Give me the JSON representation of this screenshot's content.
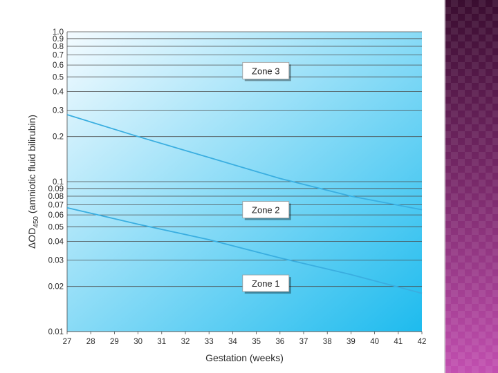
{
  "chart_data": {
    "type": "line",
    "xlabel": "Gestation (weeks)",
    "ylabel_prefix": "Δ",
    "ylabel_main": "OD",
    "ylabel_sub": "450",
    "ylabel_suffix": " (amniotic fluid bilirubin)",
    "x_scale": "linear",
    "y_scale": "log",
    "xlim": [
      27,
      42
    ],
    "ylim": [
      0.01,
      1.0
    ],
    "x_ticks": [
      27,
      28,
      29,
      30,
      31,
      32,
      33,
      34,
      35,
      36,
      37,
      38,
      39,
      40,
      41,
      42
    ],
    "y_ticks": [
      {
        "value": 1.0,
        "label": "1.0"
      },
      {
        "value": 0.9,
        "label": "0.9"
      },
      {
        "value": 0.8,
        "label": "0.8"
      },
      {
        "value": 0.7,
        "label": "0.7"
      },
      {
        "value": 0.6,
        "label": "0.6"
      },
      {
        "value": 0.5,
        "label": "0.5"
      },
      {
        "value": 0.4,
        "label": "0.4"
      },
      {
        "value": 0.3,
        "label": "0.3"
      },
      {
        "value": 0.2,
        "label": "0.2"
      },
      {
        "value": 0.1,
        "label": "0.1"
      },
      {
        "value": 0.09,
        "label": "0.09"
      },
      {
        "value": 0.08,
        "label": "0.08"
      },
      {
        "value": 0.07,
        "label": "0.07"
      },
      {
        "value": 0.06,
        "label": "0.06"
      },
      {
        "value": 0.05,
        "label": "0.05"
      },
      {
        "value": 0.04,
        "label": "0.04"
      },
      {
        "value": 0.03,
        "label": "0.03"
      },
      {
        "value": 0.02,
        "label": "0.02"
      },
      {
        "value": 0.01,
        "label": "0.01"
      }
    ],
    "grid": true,
    "series": [
      {
        "x": [
          27,
          30,
          33,
          36,
          39,
          42
        ],
        "y": [
          0.28,
          0.2,
          0.145,
          0.105,
          0.08,
          0.065
        ]
      },
      {
        "x": [
          27,
          30,
          33,
          36,
          39,
          42
        ],
        "y": [
          0.067,
          0.052,
          0.041,
          0.031,
          0.024,
          0.018
        ]
      }
    ],
    "annotations": [
      {
        "text": "Zone 3",
        "x": 35.4,
        "y": 0.55
      },
      {
        "text": "Zone 2",
        "x": 35.4,
        "y": 0.065
      },
      {
        "text": "Zone 1",
        "x": 35.4,
        "y": 0.021
      }
    ]
  },
  "colors": {
    "plot_bg_start": "#f4fbff",
    "plot_bg_end": "#1ebbee",
    "grid": "#4a4a4a",
    "curve": "#3aaee0",
    "side_panel": "#7a2a6b"
  }
}
